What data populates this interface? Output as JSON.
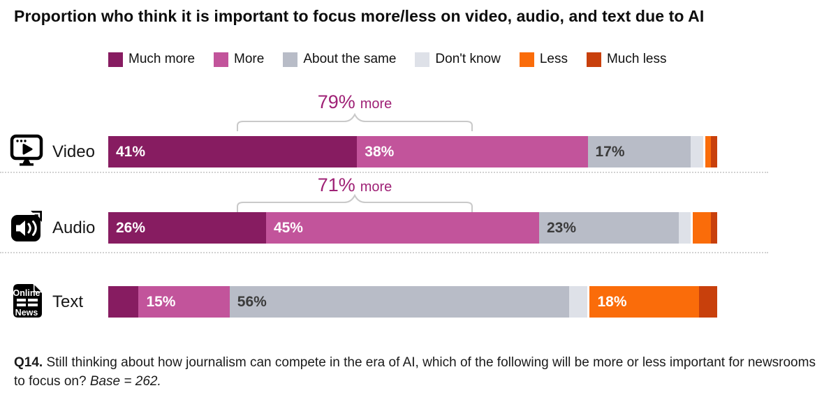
{
  "title": "Proportion who think it is important to focus more/less on video, audio, and text due to AI",
  "colors": {
    "much_more": "#871C61",
    "more": "#C2549B",
    "about_the_same": "#B8BCC7",
    "dont_know": "#DEE1E8",
    "less": "#FA6C0A",
    "much_less": "#C8400C",
    "annotation": "#9F2276",
    "bracket": "#C9C9C9"
  },
  "legend": [
    {
      "label": "Much more",
      "color_key": "much_more"
    },
    {
      "label": "More",
      "color_key": "more"
    },
    {
      "label": "About the same",
      "color_key": "about_the_same"
    },
    {
      "label": "Don't know",
      "color_key": "dont_know"
    },
    {
      "label": "Less",
      "color_key": "less"
    },
    {
      "label": "Much less",
      "color_key": "much_less"
    }
  ],
  "rows": [
    {
      "label": "Video",
      "icon": "video-player-icon",
      "annotation": {
        "value": "79%",
        "suffix": "more"
      },
      "segments": [
        {
          "name": "Much more",
          "value": 41,
          "label": "41%",
          "color_key": "much_more",
          "text": "light"
        },
        {
          "name": "More",
          "value": 38,
          "label": "38%",
          "color_key": "more",
          "text": "light"
        },
        {
          "name": "About the same",
          "value": 17,
          "label": "17%",
          "color_key": "about_the_same",
          "text": "dark"
        },
        {
          "name": "Don't know",
          "value": 2,
          "label": "",
          "color_key": "dont_know"
        },
        {
          "name": "Less",
          "value": 1,
          "label": "",
          "color_key": "less",
          "gap_before": true
        },
        {
          "name": "Much less",
          "value": 1,
          "label": "",
          "color_key": "much_less"
        }
      ]
    },
    {
      "label": "Audio",
      "icon": "audio-speaker-icon",
      "annotation": {
        "value": "71%",
        "suffix": "more"
      },
      "segments": [
        {
          "name": "Much more",
          "value": 26,
          "label": "26%",
          "color_key": "much_more",
          "text": "light"
        },
        {
          "name": "More",
          "value": 45,
          "label": "45%",
          "color_key": "more",
          "text": "light"
        },
        {
          "name": "About the same",
          "value": 23,
          "label": "23%",
          "color_key": "about_the_same",
          "text": "dark"
        },
        {
          "name": "Don't know",
          "value": 2,
          "label": "",
          "color_key": "dont_know"
        },
        {
          "name": "Less",
          "value": 3,
          "label": "",
          "color_key": "less",
          "gap_before": true
        },
        {
          "name": "Much less",
          "value": 1,
          "label": "",
          "color_key": "much_less"
        }
      ]
    },
    {
      "label": "Text",
      "icon": "online-news-icon",
      "segments": [
        {
          "name": "Much more",
          "value": 5,
          "label": "",
          "color_key": "much_more"
        },
        {
          "name": "More",
          "value": 15,
          "label": "15%",
          "color_key": "more",
          "text": "light"
        },
        {
          "name": "About the same",
          "value": 56,
          "label": "56%",
          "color_key": "about_the_same",
          "text": "dark"
        },
        {
          "name": "Don't know",
          "value": 3,
          "label": "",
          "color_key": "dont_know"
        },
        {
          "name": "Less",
          "value": 18,
          "label": "18%",
          "color_key": "less",
          "text": "light",
          "gap_before": true
        },
        {
          "name": "Much less",
          "value": 3,
          "label": "",
          "color_key": "much_less"
        }
      ]
    }
  ],
  "footnote": {
    "prefix": "Q14.",
    "text": "Still thinking about how journalism can compete in the era of AI, which of the following will be more or less important for newsrooms to focus on?",
    "base": "Base = 262."
  },
  "chart_data": {
    "type": "bar",
    "orientation": "horizontal-stacked",
    "title": "Proportion who think it is important to focus more/less on video, audio, and text due to AI",
    "categories": [
      "Video",
      "Audio",
      "Text"
    ],
    "series": [
      {
        "name": "Much more",
        "values": [
          41,
          26,
          5
        ]
      },
      {
        "name": "More",
        "values": [
          38,
          45,
          15
        ]
      },
      {
        "name": "About the same",
        "values": [
          17,
          23,
          56
        ]
      },
      {
        "name": "Don't know",
        "values": [
          2,
          2,
          3
        ]
      },
      {
        "name": "Less",
        "values": [
          1,
          3,
          18
        ]
      },
      {
        "name": "Much less",
        "values": [
          1,
          1,
          3
        ]
      }
    ],
    "annotations": [
      {
        "category": "Video",
        "text": "79% more",
        "meaning": "Much more + More = 79%"
      },
      {
        "category": "Audio",
        "text": "71% more",
        "meaning": "Much more + More = 71%"
      }
    ],
    "unit": "%",
    "xlim": [
      0,
      100
    ],
    "legend_position": "top",
    "grid": false
  }
}
